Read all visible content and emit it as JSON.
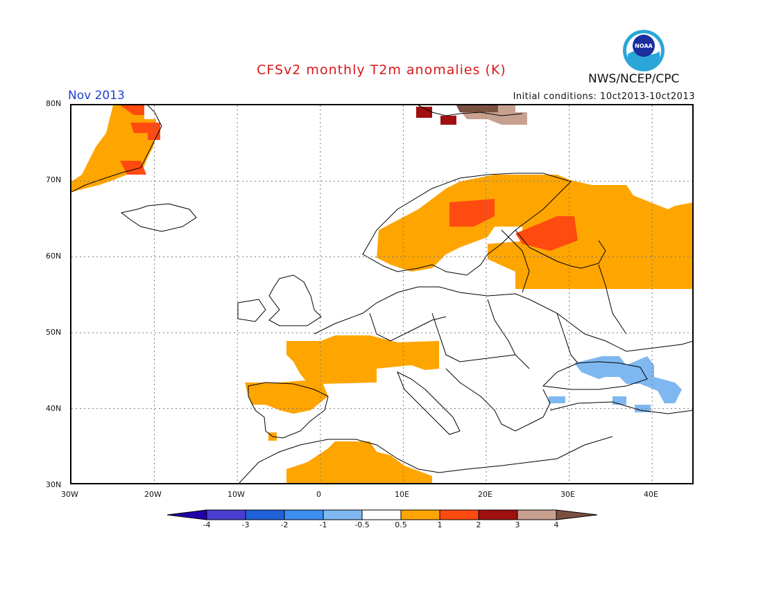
{
  "title": "CFSv2 monthly T2m anomalies (K)",
  "month_label": "Nov 2013",
  "initial_conditions": "Initial conditions: 10ct2013-10ct2013",
  "agency": "NWS/NCEP/CPC",
  "logo_text": "NOAA",
  "map": {
    "lon_range": [
      -30,
      45
    ],
    "lat_range": [
      30,
      80
    ],
    "lat_labels": [
      "80N",
      "70N",
      "60N",
      "50N",
      "40N",
      "30N"
    ],
    "lon_labels": [
      "30W",
      "20W",
      "10W",
      "0",
      "10E",
      "20E",
      "30E",
      "40E"
    ],
    "gridlines": "dotted",
    "anomaly_regions": [
      {
        "name": "Greenland",
        "class": "0.5 to 1 / 1 to 2",
        "color": "#ffa500"
      },
      {
        "name": "Svalbard",
        "class": "2 to 4",
        "color": "#a01010"
      },
      {
        "name": "Scandinavia / NW Russia",
        "class": "0.5 to 1, locally 1 to 2",
        "color": "#ffa500"
      },
      {
        "name": "France / Central Europe",
        "class": "0.5 to 1",
        "color": "#ffa500"
      },
      {
        "name": "Iberia",
        "class": "0.5 to 1",
        "color": "#ffa500"
      },
      {
        "name": "North Africa",
        "class": "0.5 to 1",
        "color": "#ffa500"
      },
      {
        "name": "Black Sea / Caucasus",
        "class": "-1 to -0.5",
        "color": "#7fb8f0"
      }
    ]
  },
  "colorbar": {
    "labels": [
      "-4",
      "-3",
      "-2",
      "-1",
      "-0.5",
      "0.5",
      "1",
      "2",
      "3",
      "4"
    ],
    "colors": [
      "#2200aa",
      "#4a3ed0",
      "#2060d8",
      "#3d8ff0",
      "#7fb8f0",
      "#ffffff",
      "#ffa500",
      "#ff4a10",
      "#a01010",
      "#c8a090",
      "#7a5040"
    ]
  }
}
